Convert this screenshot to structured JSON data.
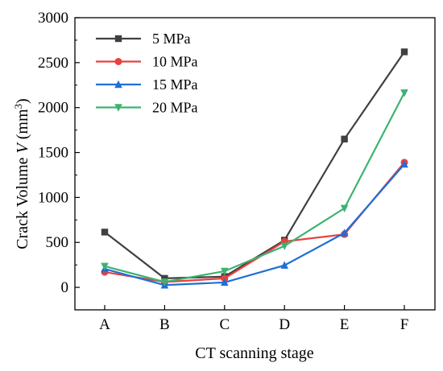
{
  "chart_data": {
    "type": "line",
    "categories": [
      "A",
      "B",
      "C",
      "D",
      "E",
      "F"
    ],
    "xlabel": "CT scanning stage",
    "ylabel": {
      "prefix": "Crack Volume ",
      "var": "V",
      "unit_open": " (mm",
      "unit_sup": "3",
      "unit_close": ")"
    },
    "ylim": [
      -250,
      3000
    ],
    "yticks": [
      0,
      500,
      1000,
      1500,
      2000,
      2500,
      3000
    ],
    "grid": false,
    "legend_position": "top-left",
    "series": [
      {
        "name": "5 MPa",
        "color": "#404040",
        "marker": "square",
        "values": [
          615,
          100,
          120,
          525,
          1650,
          2620
        ]
      },
      {
        "name": "10 MPa",
        "color": "#e8413f",
        "marker": "circle",
        "values": [
          170,
          60,
          100,
          510,
          590,
          1390
        ]
      },
      {
        "name": "15 MPa",
        "color": "#1f6fd6",
        "marker": "triangle-up",
        "values": [
          205,
          25,
          55,
          245,
          605,
          1370
        ]
      },
      {
        "name": "20 MPa",
        "color": "#3cb371",
        "marker": "triangle-down",
        "values": [
          235,
          60,
          180,
          460,
          880,
          2165
        ]
      }
    ]
  }
}
